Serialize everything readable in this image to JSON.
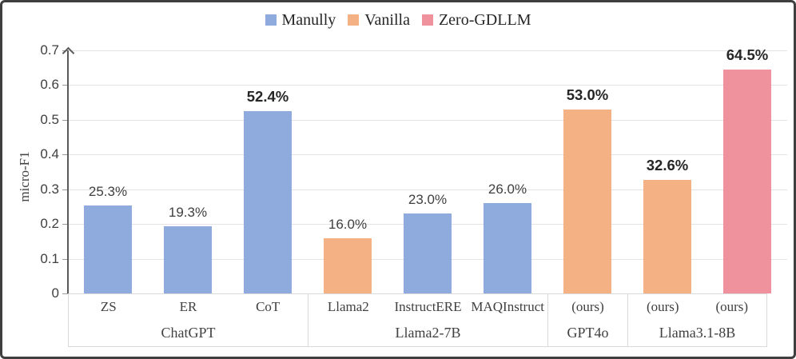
{
  "legend": {
    "items": [
      {
        "label": "Manully",
        "color": "#8FAADC"
      },
      {
        "label": "Vanilla",
        "color": "#F4B183"
      },
      {
        "label": "Zero-GDLLM",
        "color": "#F0929D"
      }
    ]
  },
  "chart_data": {
    "type": "bar",
    "title": "",
    "xlabel": "",
    "ylabel": "micro-F1",
    "ylim": [
      0,
      0.7
    ],
    "yticks": [
      "0",
      "0.1",
      "0.2",
      "0.3",
      "0.4",
      "0.5",
      "0.6",
      "0.7"
    ],
    "grid": true,
    "legend_position": "top-center",
    "series": [
      {
        "name": "Manully",
        "color": "#8FAADC"
      },
      {
        "name": "Vanilla",
        "color": "#F4B183"
      },
      {
        "name": "Zero-GDLLM",
        "color": "#F0929D"
      }
    ],
    "bars": [
      {
        "category": "ZS",
        "group": "ChatGPT",
        "series": "Manully",
        "value": 0.253,
        "label": "25.3%",
        "bold": false
      },
      {
        "category": "ER",
        "group": "ChatGPT",
        "series": "Manully",
        "value": 0.193,
        "label": "19.3%",
        "bold": false
      },
      {
        "category": "CoT",
        "group": "ChatGPT",
        "series": "Manully",
        "value": 0.524,
        "label": "52.4%",
        "bold": true
      },
      {
        "category": "Llama2",
        "group": "Llama2-7B",
        "series": "Vanilla",
        "value": 0.16,
        "label": "16.0%",
        "bold": false
      },
      {
        "category": "InstructERE",
        "group": "Llama2-7B",
        "series": "Manully",
        "value": 0.23,
        "label": "23.0%",
        "bold": false
      },
      {
        "category": "MAQInstruct",
        "group": "Llama2-7B",
        "series": "Manully",
        "value": 0.26,
        "label": "26.0%",
        "bold": false
      },
      {
        "category": "(ours)",
        "group": "GPT4o",
        "series": "Vanilla",
        "value": 0.53,
        "label": "53.0%",
        "bold": true
      },
      {
        "category": "(ours)",
        "group": "Llama3.1-8B",
        "series": "Vanilla",
        "value": 0.326,
        "label": "32.6%",
        "bold": true
      },
      {
        "category": "(ours)",
        "group": "Llama3.1-8B",
        "series": "Zero-GDLLM",
        "value": 0.645,
        "label": "64.5%",
        "bold": true
      }
    ],
    "groups": [
      {
        "label": "ChatGPT",
        "span": 3
      },
      {
        "label": "Llama2-7B",
        "span": 3
      },
      {
        "label": "GPT4o",
        "span": 1
      },
      {
        "label": "Llama3.1-8B",
        "span": 2
      }
    ]
  }
}
